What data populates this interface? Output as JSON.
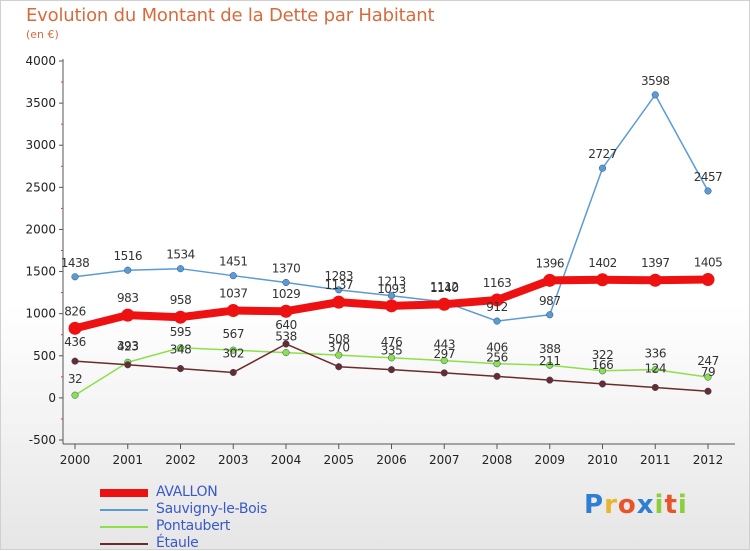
{
  "chart_data": {
    "type": "line",
    "title": "Evolution du Montant de la Dette par Habitant",
    "subtitle": "(en €)",
    "xlabel": "",
    "ylabel": "",
    "categories": [
      "2000",
      "2001",
      "2002",
      "2003",
      "2004",
      "2005",
      "2006",
      "2007",
      "2008",
      "2009",
      "2010",
      "2011",
      "2012"
    ],
    "ylim": [
      -500,
      4000
    ],
    "yticks": [
      -500,
      0,
      500,
      1000,
      1500,
      2000,
      2500,
      3000,
      3500,
      4000
    ],
    "grid": false,
    "legend_position": "bottom-left",
    "series": [
      {
        "name": "AVALLON",
        "color": "#ee1111",
        "width": 8,
        "values": [
          826,
          983,
          958,
          1037,
          1029,
          1137,
          1093,
          1112,
          1163,
          1396,
          1402,
          1397,
          1405
        ]
      },
      {
        "name": "Sauvigny-le-Bois",
        "color": "#5b9bd5",
        "width": 1.5,
        "values": [
          1438,
          1516,
          1534,
          1451,
          1370,
          1283,
          1213,
          1140,
          912,
          987,
          2727,
          3598,
          2457
        ]
      },
      {
        "name": "Pontaubert",
        "color": "#8ee04a",
        "width": 1.5,
        "values": [
          32,
          423,
          595,
          567,
          538,
          508,
          476,
          443,
          406,
          388,
          322,
          336,
          247
        ]
      },
      {
        "name": "Étaule",
        "color": "#6b2b2b",
        "width": 1.5,
        "values": [
          436,
          393,
          348,
          302,
          640,
          370,
          335,
          297,
          256,
          211,
          166,
          124,
          79
        ]
      }
    ]
  },
  "logo": {
    "text": "Proxiti",
    "colors": [
      "#2e7fd1",
      "#e8b62a",
      "#e8542a",
      "#2e7fd1",
      "#8ccf3a",
      "#e8542a",
      "#8ccf3a"
    ]
  }
}
